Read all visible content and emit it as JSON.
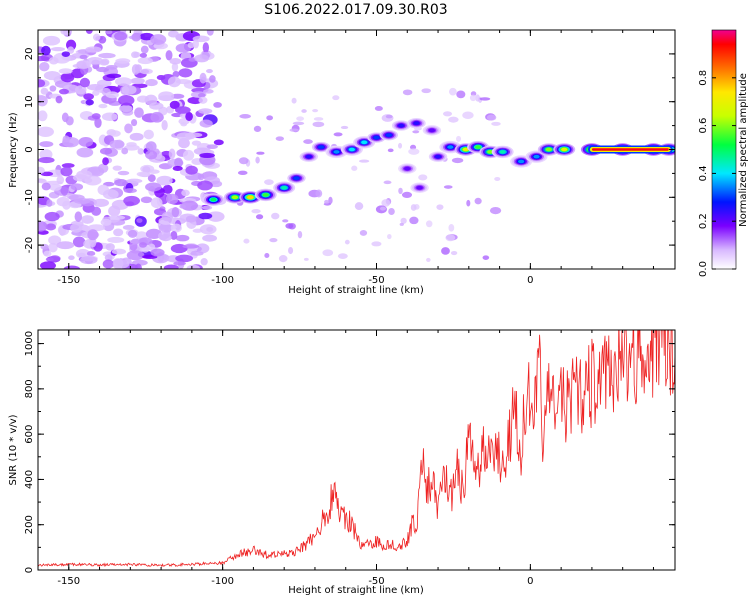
{
  "title": "S106.2022.017.09.30.R03",
  "chart_data": [
    {
      "type": "heatmap",
      "xlabel": "Height of straight line (km)",
      "ylabel": "Frequency (Hz)",
      "xlim": [
        -160,
        47
      ],
      "ylim": [
        -25,
        25
      ],
      "xticks": [
        -150,
        -100,
        -50,
        0
      ],
      "yticks": [
        -20,
        -10,
        0,
        10,
        20
      ],
      "colorbar": {
        "label": "Normalized spectral amplitude",
        "range": [
          0,
          1
        ],
        "ticks": [
          "0.0",
          "0.2",
          "0.4",
          "0.6",
          "0.8"
        ]
      },
      "ridge": [
        {
          "x": -103,
          "y": -10.5,
          "a": 0.5
        },
        {
          "x": -96,
          "y": -10,
          "a": 0.62
        },
        {
          "x": -91,
          "y": -10,
          "a": 0.75
        },
        {
          "x": -86,
          "y": -9.5,
          "a": 0.55
        },
        {
          "x": -80,
          "y": -8,
          "a": 0.45
        },
        {
          "x": -76,
          "y": -6,
          "a": 0.3
        },
        {
          "x": -72,
          "y": -1.5,
          "a": 0.25
        },
        {
          "x": -68,
          "y": 0.5,
          "a": 0.3
        },
        {
          "x": -63,
          "y": -0.5,
          "a": 0.35
        },
        {
          "x": -58,
          "y": 0,
          "a": 0.4
        },
        {
          "x": -54,
          "y": 1.5,
          "a": 0.4
        },
        {
          "x": -50,
          "y": 2.5,
          "a": 0.3
        },
        {
          "x": -46,
          "y": 3,
          "a": 0.3
        },
        {
          "x": -42,
          "y": 5,
          "a": 0.25
        },
        {
          "x": -37,
          "y": 5.5,
          "a": 0.25
        },
        {
          "x": -32,
          "y": 4,
          "a": 0.2
        },
        {
          "x": -40,
          "y": -4,
          "a": 0.2
        },
        {
          "x": -36,
          "y": -8,
          "a": 0.2
        },
        {
          "x": -30,
          "y": -1.5,
          "a": 0.25
        },
        {
          "x": -26,
          "y": 0.5,
          "a": 0.35
        },
        {
          "x": -21,
          "y": 0,
          "a": 0.7
        },
        {
          "x": -17,
          "y": 0.5,
          "a": 0.55
        },
        {
          "x": -13,
          "y": -0.5,
          "a": 0.6
        },
        {
          "x": -9,
          "y": -0.5,
          "a": 0.45
        },
        {
          "x": -3,
          "y": -2.5,
          "a": 0.35
        },
        {
          "x": 2,
          "y": -1.5,
          "a": 0.35
        },
        {
          "x": 6,
          "y": 0,
          "a": 0.6
        },
        {
          "x": 11,
          "y": 0,
          "a": 0.7
        },
        {
          "x": 20,
          "y": 0,
          "a": 0.95
        },
        {
          "x": 30,
          "y": 0,
          "a": 0.97
        },
        {
          "x": 40,
          "y": 0,
          "a": 0.95
        },
        {
          "x": 45,
          "y": 0,
          "a": 0.8
        }
      ]
    },
    {
      "type": "line",
      "xlabel": "Height of straight line (km)",
      "ylabel": "SNR (10 * v/v)",
      "xlim": [
        -160,
        47
      ],
      "ylim": [
        0,
        1060
      ],
      "xticks": [
        -150,
        -100,
        -50,
        0
      ],
      "yticks": [
        0,
        200,
        400,
        600,
        800,
        1000
      ],
      "series": [
        {
          "x": [
            -160,
            -150,
            -140,
            -130,
            -120,
            -110,
            -105,
            -100,
            -95,
            -92,
            -90,
            -88,
            -85,
            -80,
            -75,
            -70,
            -66,
            -64,
            -62,
            -60,
            -58,
            -55,
            -52,
            -50,
            -48,
            -46,
            -44,
            -42,
            -40,
            -38,
            -37,
            -36,
            -35,
            -34,
            -32,
            -30,
            -28,
            -26,
            -24,
            -22,
            -20,
            -18,
            -16,
            -14,
            -12,
            -10,
            -8,
            -6,
            -4,
            -3,
            -2,
            -1,
            0,
            1,
            2,
            3,
            4,
            5,
            6,
            8,
            10,
            12,
            14,
            16,
            18,
            20,
            22,
            25,
            28,
            31,
            34,
            37,
            40,
            42,
            44,
            45,
            46,
            47
          ],
          "y": [
            20,
            25,
            22,
            25,
            20,
            25,
            30,
            30,
            70,
            80,
            90,
            75,
            65,
            70,
            90,
            150,
            260,
            330,
            280,
            230,
            200,
            110,
            120,
            125,
            110,
            120,
            105,
            110,
            130,
            230,
            150,
            360,
            580,
            340,
            400,
            250,
            450,
            300,
            480,
            350,
            560,
            430,
            500,
            530,
            560,
            500,
            540,
            650,
            640,
            520,
            720,
            900,
            580,
            650,
            780,
            840,
            620,
            700,
            770,
            700,
            780,
            720,
            760,
            800,
            790,
            830,
            840,
            860,
            900,
            930,
            960,
            980,
            1000,
            1020,
            1010,
            1050,
            1000,
            960
          ]
        }
      ]
    }
  ]
}
